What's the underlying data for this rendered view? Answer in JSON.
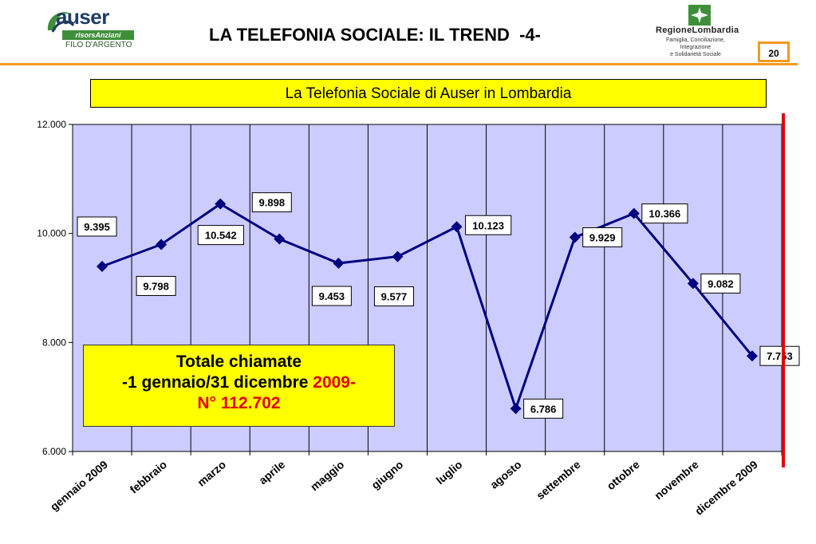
{
  "header": {
    "title": "LA TELEFONIA SOCIALE: IL TREND  -4-",
    "slide_number": "20",
    "logo_auser": {
      "name": "auser",
      "tagline": "risorsAnziani",
      "subtitle": "FILO D'ARGENTO"
    },
    "logo_regione": {
      "name": "RegioneLombardia",
      "lines": [
        "Famiglia, Conciliazione,",
        "Integrazione",
        "e Solidarietà Sociale"
      ]
    }
  },
  "colors": {
    "accent": "#f29a1e",
    "plot_bg": "#ccccff",
    "series": "#000080",
    "highlight": "#ffff00",
    "red": "#e10000"
  },
  "chart_data": {
    "type": "line",
    "title": "La Telefonia Sociale di Auser in Lombardia",
    "categories": [
      "gennaio 2009",
      "febbraio",
      "marzo",
      "aprile",
      "maggio",
      "giugno",
      "luglio",
      "agosto",
      "settembre",
      "ottobre",
      "novembre",
      "dicembre 2009"
    ],
    "series": [
      {
        "values": [
          9395,
          9798,
          10542,
          9898,
          9453,
          9577,
          10123,
          6786,
          9929,
          10366,
          9082,
          7753
        ]
      }
    ],
    "data_labels": [
      "9.395",
      "9.798",
      "10.542",
      "9.898",
      "9.453",
      "9.577",
      "10.123",
      "6.786",
      "9.929",
      "10.366",
      "9.082",
      "7.753"
    ],
    "ylim": [
      6000,
      12000
    ],
    "y_ticks": [
      6000,
      8000,
      10000,
      12000
    ],
    "y_tick_labels": [
      "6.000",
      "8.000",
      "10.000",
      "12.000"
    ],
    "xlabel": "",
    "ylabel": "",
    "grid": "vertical",
    "marker": "diamond"
  },
  "annotation": {
    "line1": "Totale chiamate",
    "line2_prefix": "-1 gennaio/31 dicembre ",
    "line2_year": "2009-",
    "line3": "N° 112.702"
  }
}
